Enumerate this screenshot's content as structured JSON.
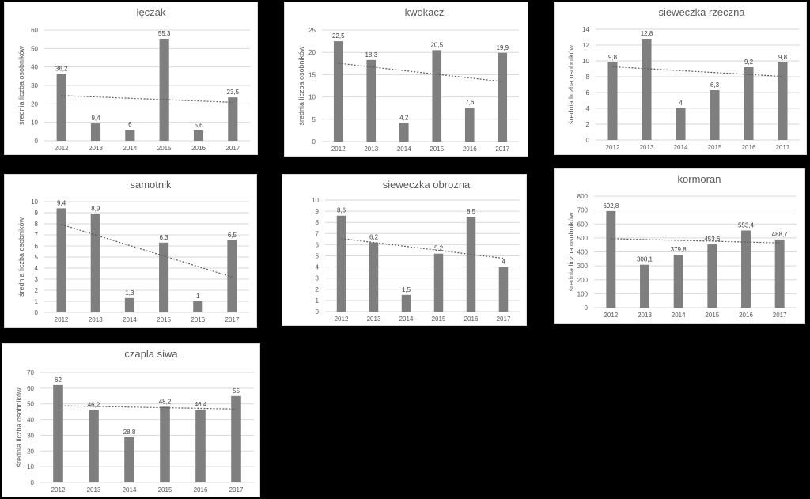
{
  "shared": {
    "categories": [
      "2012",
      "2013",
      "2014",
      "2015",
      "2016",
      "2017"
    ],
    "ylabel": "średnia liczba osobników",
    "bar_color": "#7f7f7f",
    "grid_color": "#d9d9d9",
    "trend_color": "#595959"
  },
  "chart_data": [
    {
      "type": "bar",
      "title": "łęczak",
      "categories": [
        "2012",
        "2013",
        "2014",
        "2015",
        "2016",
        "2017"
      ],
      "values": [
        36.2,
        9.4,
        6,
        55.3,
        5.6,
        23.5
      ],
      "labels": [
        "36,2",
        "9,4",
        "6",
        "55,3",
        "5,6",
        "23,5"
      ],
      "ylim": [
        0,
        60
      ],
      "yticks": [
        "0",
        "10",
        "20",
        "30",
        "40",
        "50",
        "60"
      ],
      "ylabel": "średnia liczba osobników",
      "trendline": "linear",
      "grid": true
    },
    {
      "type": "bar",
      "title": "kwokacz",
      "categories": [
        "2012",
        "2013",
        "2014",
        "2015",
        "2016",
        "2017"
      ],
      "values": [
        22.5,
        18.3,
        4.2,
        20.5,
        7.6,
        19.9
      ],
      "labels": [
        "22,5",
        "18,3",
        "4,2",
        "20,5",
        "7,6",
        "19,9"
      ],
      "ylim": [
        0,
        25
      ],
      "yticks": [
        "0",
        "5",
        "10",
        "15",
        "20",
        "25"
      ],
      "ylabel": "średnia liczba osobników",
      "trendline": "linear",
      "grid": true
    },
    {
      "type": "bar",
      "title": "sieweczka rzeczna",
      "categories": [
        "2012",
        "2013",
        "2014",
        "2015",
        "2016",
        "2017"
      ],
      "values": [
        9.8,
        12.8,
        4,
        6.3,
        9.2,
        9.8
      ],
      "labels": [
        "9,8",
        "12,8",
        "4",
        "6,3",
        "9,2",
        "9,8"
      ],
      "ylim": [
        0,
        14
      ],
      "yticks": [
        "0",
        "2",
        "4",
        "6",
        "8",
        "10",
        "12",
        "14"
      ],
      "ylabel": "średnia liczba osobników",
      "trendline": "linear",
      "grid": true
    },
    {
      "type": "bar",
      "title": "samotnik",
      "categories": [
        "2012",
        "2013",
        "2014",
        "2015",
        "2016",
        "2017"
      ],
      "values": [
        9.4,
        8.9,
        1.3,
        6.3,
        1,
        6.5
      ],
      "labels": [
        "9,4",
        "8,9",
        "1,3",
        "6,3",
        "1",
        "6,5"
      ],
      "ylim": [
        0,
        10
      ],
      "yticks": [
        "0",
        "1",
        "2",
        "3",
        "4",
        "5",
        "6",
        "7",
        "8",
        "9",
        "10"
      ],
      "ylabel": "średnia liczba osobników",
      "trendline": "linear",
      "grid": true
    },
    {
      "type": "bar",
      "title": "sieweczka obrożna",
      "categories": [
        "2012",
        "2013",
        "2014",
        "2015",
        "2016",
        "2017"
      ],
      "values": [
        8.6,
        6.2,
        1.5,
        5.2,
        8.5,
        4
      ],
      "labels": [
        "8,6",
        "6,2",
        "1,5",
        "5,2",
        "8,5",
        "4"
      ],
      "ylim": [
        0,
        10
      ],
      "yticks": [
        "0",
        "1",
        "2",
        "3",
        "4",
        "5",
        "6",
        "7",
        "8",
        "9",
        "10"
      ],
      "ylabel": "",
      "trendline": "linear",
      "grid": true
    },
    {
      "type": "bar",
      "title": "kormoran",
      "categories": [
        "2012",
        "2013",
        "2014",
        "2015",
        "2016",
        "2017"
      ],
      "values": [
        692.8,
        308.1,
        379.8,
        453.6,
        553.4,
        488.7
      ],
      "labels": [
        "692,8",
        "308,1",
        "379,8",
        "453,6",
        "553,4",
        "488,7"
      ],
      "ylim": [
        0,
        800
      ],
      "yticks": [
        "0",
        "100",
        "200",
        "300",
        "400",
        "500",
        "600",
        "700",
        "800"
      ],
      "ylabel": "średnia liczba osobników",
      "trendline": "linear",
      "grid": true
    },
    {
      "type": "bar",
      "title": "czapla siwa",
      "categories": [
        "2012",
        "2013",
        "2014",
        "2015",
        "2016",
        "2017"
      ],
      "values": [
        62,
        46.2,
        28.8,
        48.2,
        46.4,
        55
      ],
      "labels": [
        "62",
        "46,2",
        "28,8",
        "48,2",
        "46,4",
        "55"
      ],
      "ylim": [
        0,
        70
      ],
      "yticks": [
        "0",
        "10",
        "20",
        "30",
        "40",
        "50",
        "60",
        "70"
      ],
      "ylabel": "średnia liczba osobników",
      "trendline": "linear",
      "grid": true
    }
  ]
}
